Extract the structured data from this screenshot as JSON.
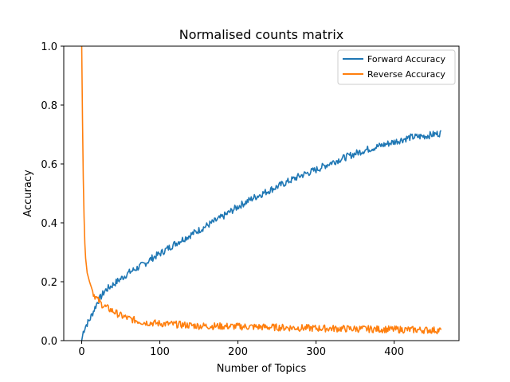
{
  "chart_data": {
    "type": "line",
    "title": "Normalised counts matrix",
    "xlabel": "Number of Topics",
    "ylabel": "Accuracy",
    "xlim": [
      -23,
      483
    ],
    "ylim": [
      0,
      1.0
    ],
    "xticks": [
      0,
      100,
      200,
      300,
      400
    ],
    "yticks": [
      0.0,
      0.2,
      0.4,
      0.6,
      0.8,
      1.0
    ],
    "xtick_labels": [
      "0",
      "100",
      "200",
      "300",
      "400"
    ],
    "ytick_labels": [
      "0.0",
      "0.2",
      "0.4",
      "0.6",
      "0.8",
      "1.0"
    ],
    "grid": false,
    "legend_position": "top-right",
    "series": [
      {
        "name": "Forward Accuracy",
        "color": "#1f77b4",
        "x": [
          0,
          2,
          5,
          10,
          15,
          20,
          25,
          30,
          40,
          50,
          60,
          70,
          80,
          90,
          100,
          120,
          140,
          160,
          180,
          200,
          220,
          240,
          260,
          280,
          300,
          320,
          340,
          360,
          380,
          400,
          420,
          440,
          460
        ],
        "y": [
          0.0,
          0.03,
          0.05,
          0.07,
          0.1,
          0.13,
          0.15,
          0.17,
          0.19,
          0.21,
          0.23,
          0.245,
          0.26,
          0.28,
          0.295,
          0.33,
          0.36,
          0.39,
          0.42,
          0.455,
          0.485,
          0.51,
          0.535,
          0.56,
          0.58,
          0.605,
          0.625,
          0.645,
          0.66,
          0.675,
          0.69,
          0.695,
          0.705
        ]
      },
      {
        "name": "Reverse Accuracy",
        "color": "#ff7f0e",
        "x": [
          0,
          1,
          2,
          3,
          4,
          5,
          7,
          10,
          15,
          20,
          25,
          30,
          40,
          50,
          60,
          70,
          80,
          100,
          120,
          150,
          200,
          250,
          300,
          350,
          400,
          460
        ],
        "y": [
          1.0,
          0.75,
          0.55,
          0.42,
          0.33,
          0.28,
          0.23,
          0.2,
          0.16,
          0.14,
          0.125,
          0.115,
          0.1,
          0.085,
          0.075,
          0.068,
          0.062,
          0.058,
          0.055,
          0.05,
          0.048,
          0.045,
          0.042,
          0.04,
          0.038,
          0.035
        ]
      }
    ]
  }
}
